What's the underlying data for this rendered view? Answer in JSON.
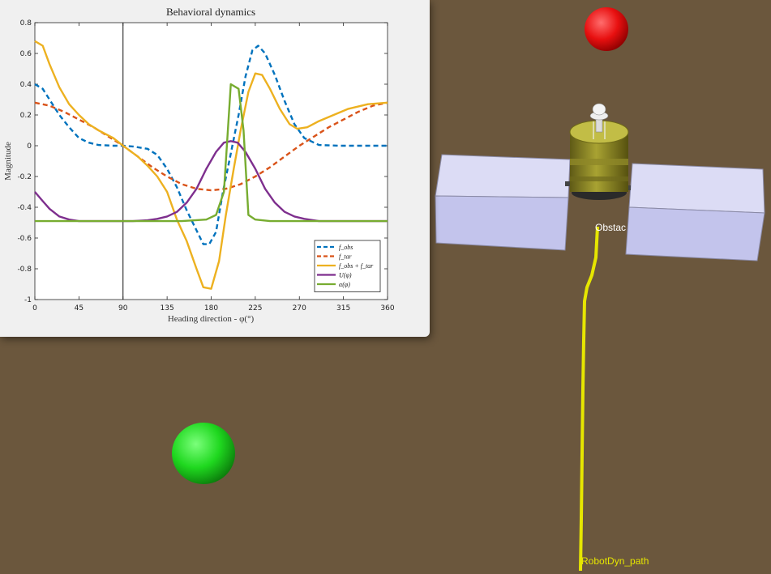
{
  "scene": {
    "obstacle_label": "Obstac",
    "path_label": "RobotDyn_path",
    "colors": {
      "ground": "#6b573d",
      "target": "#e81010",
      "start": "#1fd81f",
      "path": "#e6e600",
      "panel": "#c8c9ee"
    }
  },
  "chart_data": {
    "type": "line",
    "title": "Behavioral dynamics",
    "xlabel": "Heading direction - φ(°)",
    "ylabel": "Magnitude",
    "xlim": [
      0,
      360
    ],
    "ylim": [
      -1,
      0.8
    ],
    "xticks": [
      0,
      45,
      90,
      135,
      180,
      225,
      270,
      315,
      360
    ],
    "yticks": [
      -1,
      -0.8,
      -0.6,
      -0.4,
      -0.2,
      0,
      0.2,
      0.4,
      0.6,
      0.8
    ],
    "vline_x": 90,
    "grid": false,
    "legend_position": "bottom-right",
    "series": [
      {
        "name": "f_obs",
        "color": "#0072bd",
        "dash": true,
        "points": [
          [
            0,
            0.4
          ],
          [
            8,
            0.37
          ],
          [
            15,
            0.3
          ],
          [
            25,
            0.2
          ],
          [
            35,
            0.12
          ],
          [
            45,
            0.05
          ],
          [
            55,
            0.02
          ],
          [
            65,
            0.005
          ],
          [
            80,
            0
          ],
          [
            90,
            0
          ],
          [
            100,
            -0.005
          ],
          [
            115,
            -0.02
          ],
          [
            125,
            -0.06
          ],
          [
            135,
            -0.15
          ],
          [
            145,
            -0.27
          ],
          [
            155,
            -0.42
          ],
          [
            165,
            -0.55
          ],
          [
            172,
            -0.64
          ],
          [
            178,
            -0.64
          ],
          [
            185,
            -0.56
          ],
          [
            192,
            -0.3
          ],
          [
            200,
            -0.05
          ],
          [
            208,
            0.2
          ],
          [
            215,
            0.45
          ],
          [
            222,
            0.62
          ],
          [
            228,
            0.65
          ],
          [
            235,
            0.6
          ],
          [
            245,
            0.46
          ],
          [
            255,
            0.29
          ],
          [
            265,
            0.14
          ],
          [
            275,
            0.05
          ],
          [
            290,
            0.005
          ],
          [
            310,
            0
          ],
          [
            360,
            0
          ]
        ]
      },
      {
        "name": "f_tar",
        "color": "#d95319",
        "dash": true,
        "points": [
          [
            0,
            0.28
          ],
          [
            15,
            0.26
          ],
          [
            30,
            0.22
          ],
          [
            45,
            0.17
          ],
          [
            60,
            0.12
          ],
          [
            75,
            0.06
          ],
          [
            90,
            0
          ],
          [
            105,
            -0.07
          ],
          [
            120,
            -0.14
          ],
          [
            135,
            -0.2
          ],
          [
            150,
            -0.25
          ],
          [
            165,
            -0.28
          ],
          [
            180,
            -0.29
          ],
          [
            195,
            -0.28
          ],
          [
            210,
            -0.25
          ],
          [
            225,
            -0.2
          ],
          [
            240,
            -0.14
          ],
          [
            255,
            -0.07
          ],
          [
            270,
            0
          ],
          [
            285,
            0.06
          ],
          [
            300,
            0.12
          ],
          [
            315,
            0.17
          ],
          [
            330,
            0.22
          ],
          [
            345,
            0.26
          ],
          [
            360,
            0.28
          ]
        ]
      },
      {
        "name": "f_obs + f_tar",
        "color": "#edb120",
        "dash": false,
        "points": [
          [
            0,
            0.68
          ],
          [
            8,
            0.65
          ],
          [
            15,
            0.53
          ],
          [
            25,
            0.38
          ],
          [
            35,
            0.27
          ],
          [
            45,
            0.2
          ],
          [
            55,
            0.14
          ],
          [
            65,
            0.1
          ],
          [
            80,
            0.05
          ],
          [
            90,
            0
          ],
          [
            105,
            -0.07
          ],
          [
            115,
            -0.13
          ],
          [
            125,
            -0.2
          ],
          [
            135,
            -0.3
          ],
          [
            145,
            -0.48
          ],
          [
            155,
            -0.62
          ],
          [
            165,
            -0.8
          ],
          [
            172,
            -0.92
          ],
          [
            180,
            -0.93
          ],
          [
            188,
            -0.75
          ],
          [
            195,
            -0.45
          ],
          [
            203,
            -0.15
          ],
          [
            210,
            0.1
          ],
          [
            218,
            0.35
          ],
          [
            225,
            0.47
          ],
          [
            232,
            0.46
          ],
          [
            240,
            0.37
          ],
          [
            250,
            0.24
          ],
          [
            260,
            0.14
          ],
          [
            268,
            0.11
          ],
          [
            278,
            0.12
          ],
          [
            290,
            0.16
          ],
          [
            305,
            0.2
          ],
          [
            320,
            0.24
          ],
          [
            340,
            0.27
          ],
          [
            360,
            0.28
          ]
        ]
      },
      {
        "name": "U(φ)",
        "color": "#7e2f8e",
        "dash": false,
        "points": [
          [
            0,
            -0.3
          ],
          [
            8,
            -0.36
          ],
          [
            15,
            -0.41
          ],
          [
            25,
            -0.46
          ],
          [
            35,
            -0.48
          ],
          [
            45,
            -0.49
          ],
          [
            70,
            -0.49
          ],
          [
            100,
            -0.49
          ],
          [
            115,
            -0.485
          ],
          [
            125,
            -0.475
          ],
          [
            135,
            -0.46
          ],
          [
            145,
            -0.43
          ],
          [
            155,
            -0.37
          ],
          [
            165,
            -0.28
          ],
          [
            175,
            -0.15
          ],
          [
            185,
            -0.04
          ],
          [
            193,
            0.02
          ],
          [
            200,
            0.03
          ],
          [
            207,
            0.02
          ],
          [
            215,
            -0.04
          ],
          [
            225,
            -0.15
          ],
          [
            235,
            -0.28
          ],
          [
            245,
            -0.37
          ],
          [
            255,
            -0.43
          ],
          [
            265,
            -0.46
          ],
          [
            275,
            -0.475
          ],
          [
            290,
            -0.49
          ],
          [
            360,
            -0.49
          ]
        ]
      },
      {
        "name": "α(φ)",
        "color": "#77ac30",
        "dash": false,
        "points": [
          [
            0,
            -0.49
          ],
          [
            150,
            -0.49
          ],
          [
            175,
            -0.48
          ],
          [
            185,
            -0.45
          ],
          [
            193,
            -0.3
          ],
          [
            200,
            0.4
          ],
          [
            208,
            0.37
          ],
          [
            213,
            0.1
          ],
          [
            218,
            -0.45
          ],
          [
            225,
            -0.48
          ],
          [
            240,
            -0.49
          ],
          [
            360,
            -0.49
          ]
        ]
      }
    ]
  }
}
